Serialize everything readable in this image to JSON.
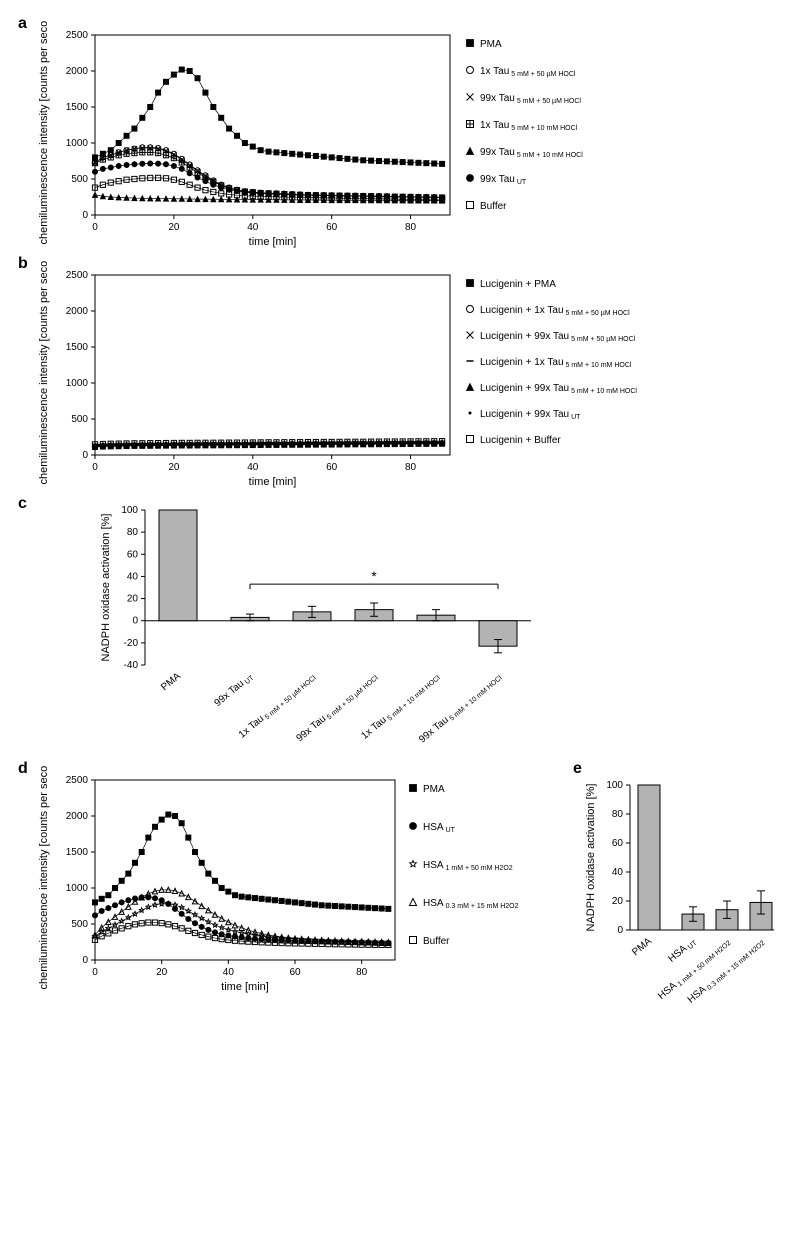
{
  "global": {
    "bg": "#ffffff",
    "axis_color": "#000000",
    "grid_color": "#cccccc",
    "text_color": "#000000",
    "bar_fill": "#b3b3b3",
    "bar_stroke": "#000000",
    "label_fontsize": 11,
    "tick_fontsize": 10,
    "legend_fontsize": 10,
    "sub_fontsize": 7,
    "panel_label_fontsize": 16
  },
  "panel_a": {
    "label": "a",
    "type": "line",
    "xlabel": "time [min]",
    "ylabel": "chemiluminescence intensity [counts per second]",
    "xlim": [
      0,
      90
    ],
    "xtick_step": 20,
    "ylim": [
      0,
      2500
    ],
    "ytick_step": 500,
    "series": [
      {
        "name": "PMA",
        "marker": "filled-square",
        "color": "#000000",
        "y": [
          800,
          850,
          900,
          1000,
          1100,
          1200,
          1350,
          1500,
          1700,
          1850,
          1950,
          2020,
          2000,
          1900,
          1700,
          1500,
          1350,
          1200,
          1100,
          1000,
          950,
          900,
          880,
          870,
          860,
          850,
          840,
          830,
          820,
          810,
          800,
          790,
          780,
          770,
          760,
          755,
          750,
          745,
          740,
          735,
          730,
          725,
          720,
          715,
          710
        ]
      },
      {
        "name": "1x Tau",
        "sub": "5 mM + 50 µM HOCl",
        "marker": "open-circle",
        "color": "#000000",
        "y": [
          730,
          800,
          830,
          870,
          900,
          920,
          940,
          940,
          930,
          900,
          850,
          780,
          700,
          620,
          550,
          480,
          420,
          380,
          350,
          330,
          320,
          310,
          305,
          300,
          295,
          290,
          285,
          280,
          278,
          276,
          274,
          272,
          270,
          268,
          266,
          264,
          262,
          260,
          258,
          256,
          254,
          252,
          250,
          248,
          246
        ]
      },
      {
        "name": "99x Tau",
        "sub": "5 mM + 50 µM HOCl",
        "marker": "x",
        "color": "#000000",
        "y": [
          730,
          800,
          830,
          870,
          900,
          920,
          930,
          930,
          920,
          890,
          840,
          770,
          690,
          610,
          540,
          470,
          410,
          370,
          345,
          325,
          315,
          305,
          300,
          295,
          290,
          285,
          280,
          276,
          274,
          272,
          270,
          268,
          266,
          264,
          262,
          260,
          258,
          256,
          254,
          252,
          250,
          248,
          246,
          244,
          242
        ]
      },
      {
        "name": "1x Tau",
        "sub": "5 mM + 10 mM HOCl",
        "marker": "plus-square",
        "color": "#000000",
        "y": [
          720,
          770,
          800,
          830,
          850,
          860,
          870,
          870,
          860,
          830,
          790,
          730,
          660,
          590,
          520,
          460,
          410,
          370,
          345,
          325,
          315,
          305,
          300,
          295,
          290,
          285,
          280,
          276,
          274,
          272,
          270,
          268,
          266,
          264,
          262,
          260,
          258,
          256,
          254,
          252,
          250,
          248,
          246,
          244,
          242
        ]
      },
      {
        "name": "99x Tau",
        "sub": "5 mM + 10 mM HOCl",
        "marker": "filled-triangle",
        "color": "#000000",
        "y": [
          280,
          260,
          250,
          245,
          240,
          235,
          233,
          231,
          230,
          228,
          226,
          225,
          223,
          221,
          220,
          219,
          218,
          217,
          216,
          215,
          214,
          213,
          212,
          211,
          210,
          210,
          209,
          209,
          208,
          208,
          207,
          207,
          206,
          206,
          205,
          205,
          204,
          204,
          203,
          203,
          202,
          202,
          201,
          201,
          200
        ]
      },
      {
        "name": "99x Tau",
        "sub": "UT",
        "marker": "filled-circle",
        "color": "#000000",
        "y": [
          600,
          640,
          660,
          680,
          695,
          705,
          712,
          715,
          714,
          705,
          680,
          640,
          580,
          520,
          470,
          420,
          380,
          350,
          330,
          315,
          305,
          298,
          293,
          288,
          284,
          280,
          277,
          274,
          272,
          270,
          268,
          266,
          264,
          262,
          260,
          258,
          256,
          254,
          252,
          250,
          248,
          246,
          244,
          242,
          240
        ]
      },
      {
        "name": "Buffer",
        "marker": "open-square",
        "color": "#000000",
        "y": [
          380,
          420,
          450,
          470,
          490,
          500,
          510,
          515,
          516,
          510,
          490,
          460,
          420,
          380,
          345,
          320,
          300,
          285,
          275,
          268,
          262,
          258,
          254,
          251,
          248,
          246,
          244,
          242,
          240,
          238,
          236,
          234,
          232,
          230,
          228,
          226,
          224,
          222,
          220,
          218,
          216,
          214,
          212,
          210,
          208
        ]
      }
    ],
    "x": [
      0,
      2,
      4,
      6,
      8,
      10,
      12,
      14,
      16,
      18,
      20,
      22,
      24,
      26,
      28,
      30,
      32,
      34,
      36,
      38,
      40,
      42,
      44,
      46,
      48,
      50,
      52,
      54,
      56,
      58,
      60,
      62,
      64,
      66,
      68,
      70,
      72,
      74,
      76,
      78,
      80,
      82,
      84,
      86,
      88
    ]
  },
  "panel_b": {
    "label": "b",
    "type": "line",
    "xlabel": "time [min]",
    "ylabel": "chemiluminescence intensity [counts per second]",
    "xlim": [
      0,
      90
    ],
    "xtick_step": 20,
    "ylim": [
      0,
      2500
    ],
    "ytick_step": 500,
    "legend_prefix": "Lucigenin + ",
    "series_names": [
      {
        "name": "PMA",
        "marker": "filled-square"
      },
      {
        "name": "1x Tau",
        "sub": "5 mM + 50 µM HOCl",
        "marker": "open-circle"
      },
      {
        "name": "99x Tau",
        "sub": "5 mM + 50 µM HOCl",
        "marker": "x"
      },
      {
        "name": "1x Tau",
        "sub": "5 mM + 10 mM HOCl",
        "marker": "dash"
      },
      {
        "name": "99x Tau",
        "sub": "5 mM + 10 mM HOCl",
        "marker": "filled-triangle"
      },
      {
        "name": "99x Tau",
        "sub": "UT",
        "marker": "dot"
      },
      {
        "name": "Buffer",
        "marker": "open-square"
      }
    ],
    "x": [
      0,
      2,
      4,
      6,
      8,
      10,
      12,
      14,
      16,
      18,
      20,
      22,
      24,
      26,
      28,
      30,
      32,
      34,
      36,
      38,
      40,
      42,
      44,
      46,
      48,
      50,
      52,
      54,
      56,
      58,
      60,
      62,
      64,
      66,
      68,
      70,
      72,
      74,
      76,
      78,
      80,
      82,
      84,
      86,
      88
    ],
    "y_flat": [
      130,
      135,
      138,
      140,
      142,
      144,
      145,
      146,
      147,
      148,
      149,
      150,
      150,
      151,
      152,
      152,
      153,
      154,
      154,
      155,
      156,
      157,
      158,
      158,
      159,
      160,
      160,
      161,
      162,
      163,
      163,
      164,
      165,
      166,
      166,
      167,
      168,
      169,
      169,
      170,
      171,
      172,
      172,
      173,
      174
    ]
  },
  "panel_c": {
    "label": "c",
    "type": "bar",
    "ylabel": "NADPH oxidase activation [%]",
    "ylim": [
      -40,
      100
    ],
    "ytick_step": 20,
    "categories": [
      {
        "name": "PMA"
      },
      {
        "name": "99x Tau",
        "sub": "UT"
      },
      {
        "name": "1x Tau",
        "sub": "5 mM + 50 µM HOCl"
      },
      {
        "name": "99x Tau",
        "sub": "5 mM + 50 µM HOCl"
      },
      {
        "name": "1x Tau",
        "sub": "5 mM + 10 mM HOCl"
      },
      {
        "name": "99x Tau",
        "sub": "5 mM + 10 mM HOCl"
      }
    ],
    "values": [
      100,
      3,
      8,
      10,
      5,
      -23
    ],
    "errors": [
      0,
      3,
      5,
      6,
      5,
      6
    ],
    "sig_bracket": {
      "from": 1,
      "to": 5,
      "label": "*",
      "y": 33
    }
  },
  "panel_d": {
    "label": "d",
    "type": "line",
    "xlabel": "time [min]",
    "ylabel": "chemiluminescence intensity [counts per second]",
    "xlim": [
      0,
      90
    ],
    "xtick_step": 20,
    "ylim": [
      0,
      2500
    ],
    "ytick_step": 500,
    "series": [
      {
        "name": "PMA",
        "marker": "filled-square",
        "color": "#000000",
        "y": [
          800,
          850,
          900,
          1000,
          1100,
          1200,
          1350,
          1500,
          1700,
          1850,
          1950,
          2020,
          2000,
          1900,
          1700,
          1500,
          1350,
          1200,
          1100,
          1000,
          950,
          900,
          880,
          870,
          860,
          850,
          840,
          830,
          820,
          810,
          800,
          790,
          780,
          770,
          760,
          755,
          750,
          745,
          740,
          735,
          730,
          725,
          720,
          715,
          710
        ]
      },
      {
        "name": "HSA",
        "sub": "UT",
        "marker": "filled-circle",
        "color": "#000000",
        "y": [
          620,
          680,
          720,
          760,
          800,
          830,
          855,
          870,
          870,
          858,
          830,
          780,
          710,
          640,
          570,
          510,
          460,
          418,
          384,
          358,
          340,
          325,
          314,
          304,
          297,
          290,
          285,
          280,
          276,
          272,
          269,
          266,
          263,
          260,
          258,
          256,
          254,
          252,
          250,
          248,
          246,
          244,
          242,
          240,
          238
        ]
      },
      {
        "name": "HSA",
        "sub": "1 mM + 50 mM H2O2",
        "marker": "star",
        "color": "#000000",
        "y": [
          330,
          390,
          440,
          490,
          540,
          590,
          640,
          690,
          735,
          765,
          780,
          780,
          765,
          730,
          680,
          630,
          580,
          530,
          485,
          450,
          420,
          395,
          374,
          357,
          343,
          331,
          321,
          313,
          306,
          299,
          294,
          289,
          284,
          280,
          276,
          272,
          269,
          266,
          263,
          260,
          258,
          256,
          254,
          252,
          250
        ]
      },
      {
        "name": "HSA",
        "sub": "0.3 mM + 15 mM H2O2",
        "marker": "open-triangle",
        "color": "#000000",
        "y": [
          350,
          450,
          530,
          600,
          670,
          740,
          810,
          870,
          920,
          955,
          975,
          975,
          960,
          925,
          875,
          815,
          750,
          690,
          630,
          575,
          525,
          483,
          446,
          415,
          389,
          367,
          348,
          332,
          319,
          308,
          298,
          290,
          283,
          277,
          271,
          266,
          261,
          257,
          253,
          250,
          247,
          244,
          241,
          238,
          236
        ]
      },
      {
        "name": "Buffer",
        "marker": "open-square",
        "color": "#000000",
        "y": [
          280,
          330,
          370,
          410,
          440,
          470,
          495,
          510,
          520,
          520,
          512,
          495,
          470,
          440,
          405,
          375,
          348,
          325,
          305,
          290,
          278,
          268,
          261,
          255,
          250,
          246,
          242,
          239,
          236,
          233,
          231,
          229,
          227,
          225,
          223,
          221,
          219,
          218,
          216,
          215,
          213,
          212,
          211,
          210,
          209
        ]
      }
    ],
    "x": [
      0,
      2,
      4,
      6,
      8,
      10,
      12,
      14,
      16,
      18,
      20,
      22,
      24,
      26,
      28,
      30,
      32,
      34,
      36,
      38,
      40,
      42,
      44,
      46,
      48,
      50,
      52,
      54,
      56,
      58,
      60,
      62,
      64,
      66,
      68,
      70,
      72,
      74,
      76,
      78,
      80,
      82,
      84,
      86,
      88
    ]
  },
  "panel_e": {
    "label": "e",
    "type": "bar",
    "ylabel": "NADPH oxidase activation [%]",
    "ylim": [
      0,
      100
    ],
    "ytick_step": 20,
    "categories": [
      {
        "name": "PMA"
      },
      {
        "name": "HSA",
        "sub": "UT"
      },
      {
        "name": "HSA",
        "sub": "1 mM + 50 mM H2O2"
      },
      {
        "name": "HSA",
        "sub": "0.3 mM + 15 mM H2O2"
      }
    ],
    "values": [
      100,
      11,
      14,
      19
    ],
    "errors": [
      0,
      5,
      6,
      8
    ]
  }
}
